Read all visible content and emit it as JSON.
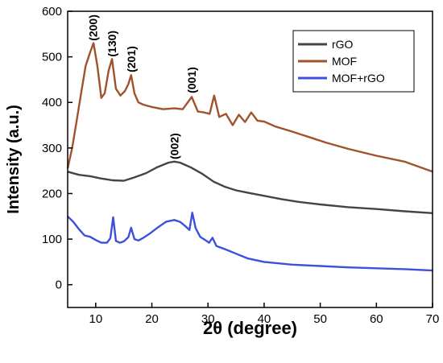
{
  "chart_data": {
    "type": "line",
    "xlabel": "2θ (degree)",
    "ylabel": "Intensity (a.u.)",
    "xlim": [
      5,
      70
    ],
    "ylim": [
      -50,
      600
    ],
    "xticks": [
      10,
      20,
      30,
      40,
      50,
      60,
      70
    ],
    "yticks": [
      0,
      100,
      200,
      300,
      400,
      500,
      600
    ],
    "grid": false,
    "legend_position": "top-right",
    "series": [
      {
        "name": "rGO",
        "color": "#444444",
        "x": [
          5,
          7,
          9,
          11,
          13,
          15,
          17,
          19,
          21,
          23,
          24,
          25,
          27,
          29,
          31,
          33,
          35,
          37,
          40,
          43,
          46,
          50,
          55,
          60,
          65,
          70
        ],
        "y": [
          248,
          241,
          238,
          233,
          229,
          228,
          236,
          245,
          258,
          268,
          270,
          268,
          257,
          243,
          226,
          215,
          207,
          202,
          195,
          188,
          182,
          176,
          170,
          166,
          161,
          157
        ]
      },
      {
        "name": "MOF",
        "color": "#a0522d",
        "x": [
          5,
          5.8,
          6.6,
          7.4,
          8.2,
          9.0,
          9.6,
          10.3,
          11.0,
          11.6,
          12.3,
          12.9,
          13.6,
          14.4,
          15.2,
          15.8,
          16.3,
          16.9,
          17.6,
          18.5,
          20,
          22,
          24,
          25.5,
          27.1,
          28.2,
          29.3,
          30.3,
          31.1,
          32,
          33.2,
          34.4,
          35.5,
          36.6,
          37.7,
          38.8,
          40,
          42,
          45,
          48,
          51,
          55,
          60,
          65,
          70
        ],
        "y": [
          255,
          300,
          360,
          420,
          480,
          510,
          530,
          480,
          410,
          420,
          470,
          495,
          430,
          415,
          425,
          440,
          460,
          420,
          400,
          395,
          390,
          385,
          387,
          385,
          412,
          380,
          378,
          375,
          415,
          368,
          375,
          350,
          373,
          357,
          378,
          360,
          358,
          347,
          336,
          324,
          312,
          298,
          283,
          270,
          248
        ]
      },
      {
        "name": "MOF+rGO",
        "color": "#3c50dc",
        "x": [
          5,
          6,
          7,
          8,
          9,
          10,
          11,
          12,
          12.6,
          13.1,
          13.6,
          14.3,
          15,
          15.8,
          16.3,
          16.9,
          17.6,
          18.5,
          19.5,
          21,
          22.5,
          24,
          25,
          26,
          26.7,
          27.2,
          27.8,
          28.6,
          29.5,
          30.2,
          30.8,
          31.5,
          33,
          35,
          37,
          40,
          45,
          50,
          55,
          60,
          65,
          70
        ],
        "y": [
          150,
          138,
          122,
          108,
          105,
          98,
          92,
          92,
          102,
          148,
          96,
          92,
          95,
          104,
          125,
          100,
          97,
          103,
          111,
          125,
          138,
          142,
          138,
          128,
          120,
          158,
          124,
          105,
          98,
          92,
          103,
          85,
          78,
          68,
          58,
          50,
          44,
          41,
          38,
          36,
          34,
          31
        ]
      }
    ],
    "annotations": [
      {
        "text": "(200)",
        "x": 9.5,
        "y": 535
      },
      {
        "text": "(130)",
        "x": 12.9,
        "y": 500
      },
      {
        "text": "(201)",
        "x": 16.3,
        "y": 466
      },
      {
        "text": "(002)",
        "x": 24.0,
        "y": 275
      },
      {
        "text": "(001)",
        "x": 27.1,
        "y": 420
      }
    ]
  }
}
